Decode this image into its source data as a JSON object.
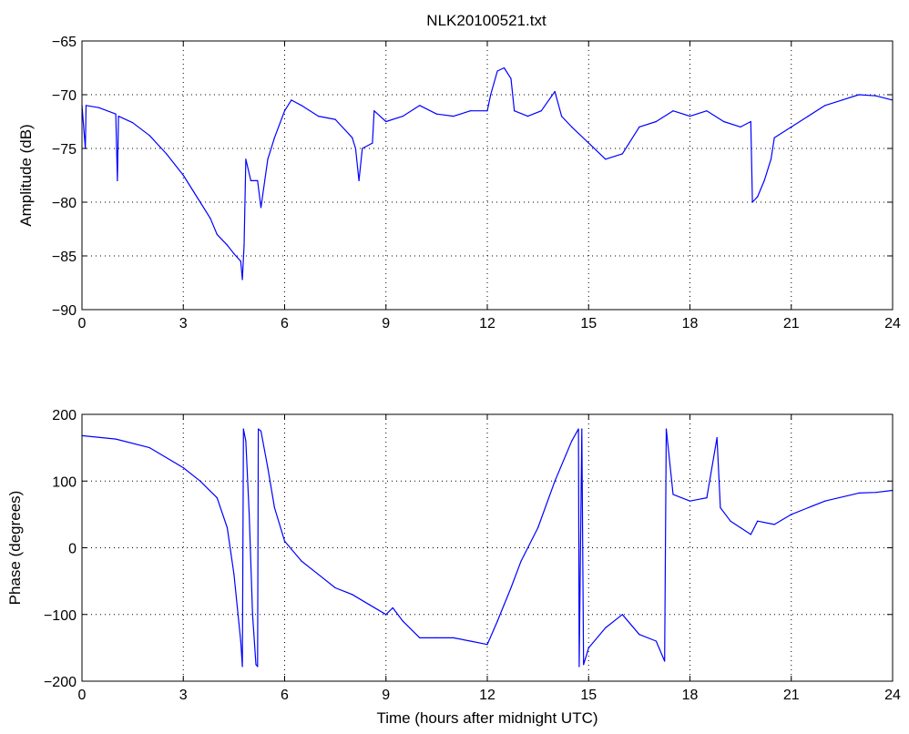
{
  "figure": {
    "title": "NLK20100521.txt"
  },
  "chart_data": [
    {
      "type": "line",
      "title": "NLK20100521.txt",
      "xlabel": "",
      "ylabel": "Amplitude (dB)",
      "xlim": [
        0,
        24
      ],
      "ylim": [
        -90,
        -65
      ],
      "xticks": [
        0,
        3,
        6,
        9,
        12,
        15,
        18,
        21,
        24
      ],
      "yticks": [
        -90,
        -85,
        -80,
        -75,
        -70,
        -65
      ],
      "grid": true,
      "series_color": "#0000ff",
      "series": [
        {
          "values": [
            {
              "x": 0.0,
              "y": -71.0
            },
            {
              "x": 0.1,
              "y": -75.0
            },
            {
              "x": 0.12,
              "y": -71.0
            },
            {
              "x": 0.5,
              "y": -71.2
            },
            {
              "x": 1.0,
              "y": -71.8
            },
            {
              "x": 1.05,
              "y": -78.0
            },
            {
              "x": 1.08,
              "y": -72.0
            },
            {
              "x": 1.5,
              "y": -72.6
            },
            {
              "x": 2.0,
              "y": -73.8
            },
            {
              "x": 2.5,
              "y": -75.5
            },
            {
              "x": 3.0,
              "y": -77.5
            },
            {
              "x": 3.5,
              "y": -80.0
            },
            {
              "x": 3.8,
              "y": -81.5
            },
            {
              "x": 4.0,
              "y": -83.0
            },
            {
              "x": 4.3,
              "y": -84.0
            },
            {
              "x": 4.5,
              "y": -84.8
            },
            {
              "x": 4.7,
              "y": -85.5
            },
            {
              "x": 4.75,
              "y": -87.2
            },
            {
              "x": 4.8,
              "y": -84.0
            },
            {
              "x": 4.85,
              "y": -76.0
            },
            {
              "x": 5.0,
              "y": -78.0
            },
            {
              "x": 5.2,
              "y": -78.0
            },
            {
              "x": 5.3,
              "y": -80.5
            },
            {
              "x": 5.5,
              "y": -76.0
            },
            {
              "x": 5.7,
              "y": -74.0
            },
            {
              "x": 6.0,
              "y": -71.5
            },
            {
              "x": 6.2,
              "y": -70.5
            },
            {
              "x": 6.5,
              "y": -71.0
            },
            {
              "x": 7.0,
              "y": -72.0
            },
            {
              "x": 7.5,
              "y": -72.3
            },
            {
              "x": 8.0,
              "y": -74.0
            },
            {
              "x": 8.1,
              "y": -75.0
            },
            {
              "x": 8.2,
              "y": -78.0
            },
            {
              "x": 8.3,
              "y": -75.0
            },
            {
              "x": 8.6,
              "y": -74.5
            },
            {
              "x": 8.65,
              "y": -71.5
            },
            {
              "x": 9.0,
              "y": -72.5
            },
            {
              "x": 9.5,
              "y": -72.0
            },
            {
              "x": 10.0,
              "y": -71.0
            },
            {
              "x": 10.5,
              "y": -71.8
            },
            {
              "x": 11.0,
              "y": -72.0
            },
            {
              "x": 11.5,
              "y": -71.5
            },
            {
              "x": 12.0,
              "y": -71.5
            },
            {
              "x": 12.1,
              "y": -70.0
            },
            {
              "x": 12.3,
              "y": -67.8
            },
            {
              "x": 12.5,
              "y": -67.5
            },
            {
              "x": 12.7,
              "y": -68.5
            },
            {
              "x": 12.8,
              "y": -71.5
            },
            {
              "x": 13.2,
              "y": -72.0
            },
            {
              "x": 13.6,
              "y": -71.5
            },
            {
              "x": 14.0,
              "y": -69.7
            },
            {
              "x": 14.2,
              "y": -72.0
            },
            {
              "x": 14.5,
              "y": -73.0
            },
            {
              "x": 15.0,
              "y": -74.5
            },
            {
              "x": 15.5,
              "y": -76.0
            },
            {
              "x": 16.0,
              "y": -75.5
            },
            {
              "x": 16.5,
              "y": -73.0
            },
            {
              "x": 17.0,
              "y": -72.5
            },
            {
              "x": 17.5,
              "y": -71.5
            },
            {
              "x": 18.0,
              "y": -72.0
            },
            {
              "x": 18.5,
              "y": -71.5
            },
            {
              "x": 19.0,
              "y": -72.5
            },
            {
              "x": 19.5,
              "y": -73.0
            },
            {
              "x": 19.8,
              "y": -72.5
            },
            {
              "x": 19.85,
              "y": -80.0
            },
            {
              "x": 20.0,
              "y": -79.5
            },
            {
              "x": 20.2,
              "y": -78.0
            },
            {
              "x": 20.4,
              "y": -76.0
            },
            {
              "x": 20.5,
              "y": -74.0
            },
            {
              "x": 21.0,
              "y": -73.0
            },
            {
              "x": 21.5,
              "y": -72.0
            },
            {
              "x": 22.0,
              "y": -71.0
            },
            {
              "x": 22.5,
              "y": -70.5
            },
            {
              "x": 23.0,
              "y": -70.0
            },
            {
              "x": 23.5,
              "y": -70.1
            },
            {
              "x": 24.0,
              "y": -70.5
            }
          ]
        }
      ]
    },
    {
      "type": "line",
      "title": "",
      "xlabel": "Time (hours after midnight UTC)",
      "ylabel": "Phase (degrees)",
      "xlim": [
        0,
        24
      ],
      "ylim": [
        -200,
        200
      ],
      "xticks": [
        0,
        3,
        6,
        9,
        12,
        15,
        18,
        21,
        24
      ],
      "yticks": [
        -200,
        -100,
        0,
        100,
        200
      ],
      "grid": true,
      "series_color": "#0000ff",
      "series": [
        {
          "values": [
            {
              "x": 0.0,
              "y": 168
            },
            {
              "x": 1.0,
              "y": 163
            },
            {
              "x": 2.0,
              "y": 150
            },
            {
              "x": 3.0,
              "y": 120
            },
            {
              "x": 3.5,
              "y": 100
            },
            {
              "x": 4.0,
              "y": 75
            },
            {
              "x": 4.3,
              "y": 30
            },
            {
              "x": 4.5,
              "y": -40
            },
            {
              "x": 4.7,
              "y": -140
            },
            {
              "x": 4.75,
              "y": -178
            },
            {
              "x": 4.78,
              "y": 178
            },
            {
              "x": 4.85,
              "y": 160
            },
            {
              "x": 4.95,
              "y": 50
            },
            {
              "x": 5.05,
              "y": -100
            },
            {
              "x": 5.15,
              "y": -175
            },
            {
              "x": 5.2,
              "y": -178
            },
            {
              "x": 5.22,
              "y": 178
            },
            {
              "x": 5.3,
              "y": 175
            },
            {
              "x": 5.5,
              "y": 120
            },
            {
              "x": 5.7,
              "y": 60
            },
            {
              "x": 6.0,
              "y": 10
            },
            {
              "x": 6.5,
              "y": -20
            },
            {
              "x": 7.0,
              "y": -40
            },
            {
              "x": 7.5,
              "y": -60
            },
            {
              "x": 8.0,
              "y": -70
            },
            {
              "x": 8.5,
              "y": -85
            },
            {
              "x": 9.0,
              "y": -100
            },
            {
              "x": 9.2,
              "y": -90
            },
            {
              "x": 9.5,
              "y": -110
            },
            {
              "x": 10.0,
              "y": -135
            },
            {
              "x": 10.5,
              "y": -135
            },
            {
              "x": 11.0,
              "y": -135
            },
            {
              "x": 11.5,
              "y": -140
            },
            {
              "x": 12.0,
              "y": -145
            },
            {
              "x": 12.3,
              "y": -110
            },
            {
              "x": 12.7,
              "y": -60
            },
            {
              "x": 13.0,
              "y": -20
            },
            {
              "x": 13.5,
              "y": 30
            },
            {
              "x": 14.0,
              "y": 100
            },
            {
              "x": 14.5,
              "y": 160
            },
            {
              "x": 14.7,
              "y": 178
            },
            {
              "x": 14.72,
              "y": -178
            },
            {
              "x": 14.8,
              "y": 178
            },
            {
              "x": 14.85,
              "y": -175
            },
            {
              "x": 15.0,
              "y": -150
            },
            {
              "x": 15.5,
              "y": -120
            },
            {
              "x": 16.0,
              "y": -100
            },
            {
              "x": 16.5,
              "y": -130
            },
            {
              "x": 17.0,
              "y": -140
            },
            {
              "x": 17.25,
              "y": -170
            },
            {
              "x": 17.3,
              "y": 178
            },
            {
              "x": 17.5,
              "y": 80
            },
            {
              "x": 18.0,
              "y": 70
            },
            {
              "x": 18.5,
              "y": 75
            },
            {
              "x": 18.8,
              "y": 165
            },
            {
              "x": 18.9,
              "y": 60
            },
            {
              "x": 19.2,
              "y": 40
            },
            {
              "x": 19.5,
              "y": 30
            },
            {
              "x": 19.8,
              "y": 20
            },
            {
              "x": 20.0,
              "y": 40
            },
            {
              "x": 20.5,
              "y": 35
            },
            {
              "x": 21.0,
              "y": 50
            },
            {
              "x": 21.5,
              "y": 60
            },
            {
              "x": 22.0,
              "y": 70
            },
            {
              "x": 23.0,
              "y": 82
            },
            {
              "x": 23.5,
              "y": 83
            },
            {
              "x": 24.0,
              "y": 86
            }
          ]
        }
      ]
    }
  ]
}
